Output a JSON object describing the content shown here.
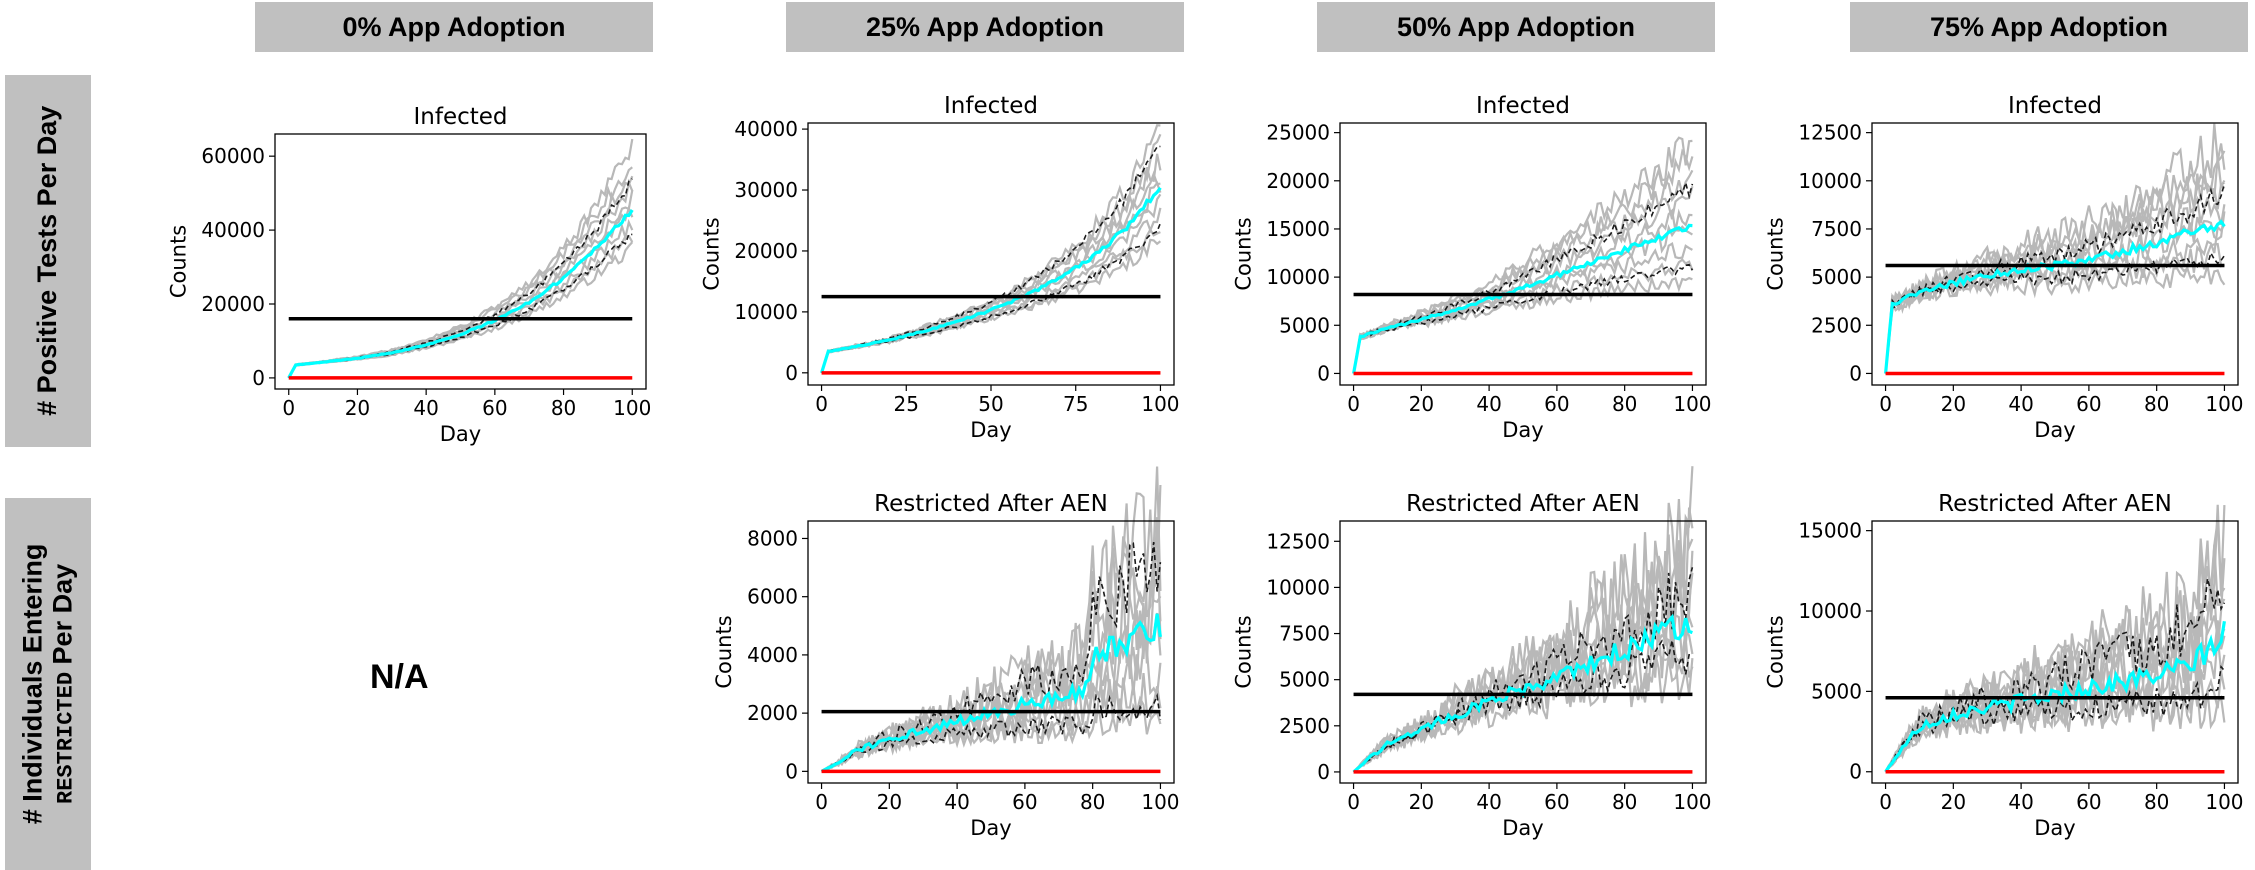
{
  "col_headers": [
    "0% App Adoption",
    "25% App Adoption",
    "50% App Adoption",
    "75% App Adoption"
  ],
  "row_headers": {
    "row1": "# Positive Tests Per Day",
    "row2_line1": "# Individuals Entering",
    "row2_line2a": "RESTRICTED",
    "row2_line2b": " Per Day"
  },
  "na_label": "N/A",
  "colors": {
    "replicates": "#b8b8b8",
    "bounds": "#1a1a1a",
    "mean": "#00ffff",
    "reference_black": "#000000",
    "reference_red": "#ff0000",
    "header_bg": "#c0c0c0"
  },
  "chart_data": [
    {
      "type": "line",
      "panel_id": "r1c1",
      "title": "Infected",
      "xlabel": "Day",
      "ylabel": "Counts",
      "xlim": [
        -4,
        104
      ],
      "ylim": [
        -3000,
        66000
      ],
      "xticks": [
        0,
        20,
        40,
        60,
        80,
        100
      ],
      "yticks": [
        0,
        20000,
        40000,
        60000
      ],
      "ytick_labels": [
        "0",
        "20000",
        "40000",
        "60000"
      ],
      "black_line": 16000,
      "red_line": 0,
      "mean": {
        "x": [
          0,
          2,
          10,
          20,
          30,
          40,
          50,
          60,
          70,
          80,
          90,
          100
        ],
        "y": [
          0,
          3500,
          4300,
          5300,
          6800,
          8900,
          11800,
          15500,
          20500,
          27000,
          35500,
          45500
        ]
      },
      "upper_end": 53000,
      "lower_end": 39000,
      "max_end": 62000,
      "min_end": 35000,
      "noise": 0.05
    },
    {
      "type": "line",
      "panel_id": "r1c2",
      "title": "Infected",
      "xlabel": "Day",
      "ylabel": "Counts",
      "xlim": [
        -4,
        104
      ],
      "ylim": [
        -2000,
        41000
      ],
      "xticks": [
        0,
        25,
        50,
        75,
        100
      ],
      "yticks": [
        0,
        10000,
        20000,
        30000,
        40000
      ],
      "ytick_labels": [
        "0",
        "10000",
        "20000",
        "30000",
        "40000"
      ],
      "black_line": 12500,
      "red_line": 0,
      "mean": {
        "x": [
          0,
          2,
          10,
          20,
          30,
          40,
          50,
          60,
          70,
          80,
          90,
          100
        ],
        "y": [
          0,
          3500,
          4300,
          5400,
          6800,
          8400,
          10300,
          12600,
          15500,
          19000,
          23800,
          30500
        ]
      },
      "upper_end": 38000,
      "lower_end": 24000,
      "max_end": 39500,
      "min_end": 22000,
      "noise": 0.06
    },
    {
      "type": "line",
      "panel_id": "r1c3",
      "title": "Infected",
      "xlabel": "Day",
      "ylabel": "Counts",
      "xlim": [
        -4,
        104
      ],
      "ylim": [
        -1200,
        26000
      ],
      "xticks": [
        0,
        20,
        40,
        60,
        80,
        100
      ],
      "yticks": [
        0,
        5000,
        10000,
        15000,
        20000,
        25000
      ],
      "ytick_labels": [
        "0",
        "5000",
        "10000",
        "15000",
        "20000",
        "25000"
      ],
      "black_line": 8200,
      "red_line": 0,
      "mean": {
        "x": [
          0,
          2,
          10,
          20,
          30,
          40,
          50,
          60,
          70,
          80,
          90,
          100
        ],
        "y": [
          0,
          3800,
          4700,
          5600,
          6600,
          7700,
          8900,
          10200,
          11500,
          12800,
          14100,
          15500
        ]
      },
      "upper_end": 19500,
      "lower_end": 11000,
      "max_end": 24000,
      "min_end": 9500,
      "noise": 0.08
    },
    {
      "type": "line",
      "panel_id": "r1c4",
      "title": "Infected",
      "xlabel": "Day",
      "ylabel": "Counts",
      "xlim": [
        -4,
        104
      ],
      "ylim": [
        -600,
        13000
      ],
      "xticks": [
        0,
        20,
        40,
        60,
        80,
        100
      ],
      "yticks": [
        0,
        2500,
        5000,
        7500,
        10000,
        12500
      ],
      "ytick_labels": [
        "0",
        "2500",
        "5000",
        "7500",
        "10000",
        "12500"
      ],
      "black_line": 5600,
      "red_line": 0,
      "mean": {
        "x": [
          0,
          2,
          10,
          20,
          30,
          40,
          50,
          60,
          70,
          80,
          90,
          100
        ],
        "y": [
          0,
          3600,
          4200,
          4700,
          5100,
          5400,
          5600,
          5900,
          6300,
          6800,
          7300,
          7800
        ]
      },
      "upper_end": 9200,
      "lower_end": 6000,
      "max_end": 12000,
      "min_end": 5200,
      "noise": 0.12
    },
    {
      "type": "line",
      "panel_id": "r2c2",
      "title": "Restricted After AEN",
      "xlabel": "Day",
      "ylabel": "Counts",
      "xlim": [
        -4,
        104
      ],
      "ylim": [
        -400,
        8600
      ],
      "xticks": [
        0,
        20,
        40,
        60,
        80,
        100
      ],
      "yticks": [
        0,
        2000,
        4000,
        6000,
        8000
      ],
      "ytick_labels": [
        "0",
        "2000",
        "4000",
        "6000",
        "8000"
      ],
      "black_line": 2050,
      "red_line": 0,
      "mean": {
        "x": [
          0,
          5,
          10,
          20,
          30,
          40,
          50,
          60,
          70,
          78,
          80,
          90,
          100
        ],
        "y": [
          0,
          300,
          700,
          1100,
          1400,
          1700,
          2000,
          2300,
          2600,
          2800,
          4000,
          4500,
          5000
        ]
      },
      "upper_end": 7500,
      "lower_end": 2200,
      "max_end": 8200,
      "min_end": 1800,
      "noise": 0.35
    },
    {
      "type": "line",
      "panel_id": "r2c3",
      "title": "Restricted After AEN",
      "xlabel": "Day",
      "ylabel": "Counts",
      "xlim": [
        -4,
        104
      ],
      "ylim": [
        -600,
        13600
      ],
      "xticks": [
        0,
        20,
        40,
        60,
        80,
        100
      ],
      "yticks": [
        0,
        2500,
        5000,
        7500,
        10000,
        12500
      ],
      "ytick_labels": [
        "0",
        "2500",
        "5000",
        "7500",
        "10000",
        "12500"
      ],
      "black_line": 4200,
      "red_line": 0,
      "mean": {
        "x": [
          0,
          5,
          10,
          20,
          30,
          40,
          50,
          60,
          70,
          80,
          90,
          100
        ],
        "y": [
          0,
          800,
          1500,
          2300,
          3100,
          3800,
          4500,
          5200,
          5900,
          6600,
          7400,
          8200
        ]
      },
      "upper_end": 10000,
      "lower_end": 6500,
      "max_end": 13000,
      "min_end": 5500,
      "noise": 0.3
    },
    {
      "type": "line",
      "panel_id": "r2c4",
      "title": "Restricted After AEN",
      "xlabel": "Day",
      "ylabel": "Counts",
      "xlim": [
        -4,
        104
      ],
      "ylim": [
        -700,
        15600
      ],
      "xticks": [
        0,
        20,
        40,
        60,
        80,
        100
      ],
      "yticks": [
        0,
        5000,
        10000,
        15000
      ],
      "ytick_labels": [
        "0",
        "5000",
        "10000",
        "15000"
      ],
      "black_line": 4600,
      "red_line": 0,
      "mean": {
        "x": [
          0,
          5,
          10,
          20,
          30,
          40,
          50,
          60,
          70,
          80,
          90,
          100
        ],
        "y": [
          0,
          1500,
          2800,
          3600,
          4000,
          4400,
          4800,
          5200,
          5600,
          6000,
          6600,
          8500
        ]
      },
      "upper_end": 12000,
      "lower_end": 5500,
      "max_end": 14000,
      "min_end": 4500,
      "noise": 0.35
    }
  ]
}
